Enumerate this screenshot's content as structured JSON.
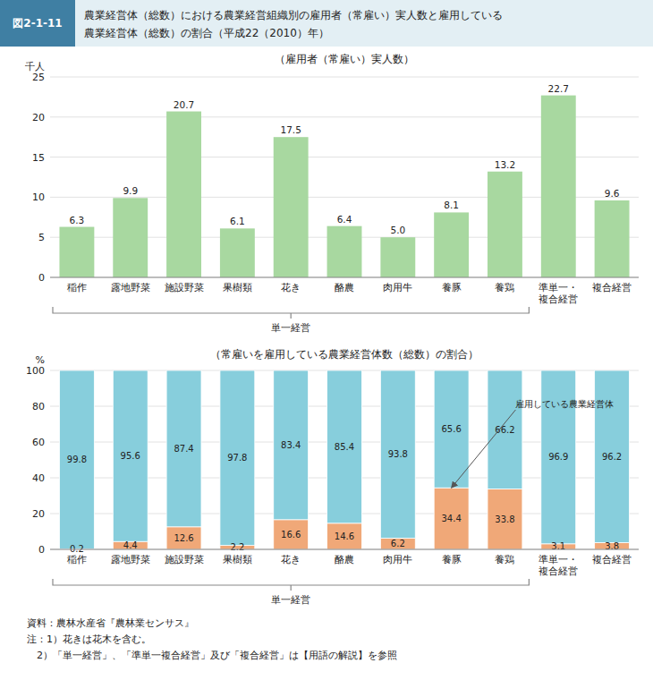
{
  "figure_label": "図2-1-11",
  "title": "農業経営体（総数）における農業経営組織別の雇用者（常雇い）実人数と雇用している",
  "subtitle": "農業経営体（総数）の割合（平成22（2010）年）",
  "source": "資料：農林水産省『農林業センサス』",
  "notes": [
    "注：1）花きは花木を含む。",
    "　2）「単一経営」、「準単一複合経営」及び「複合経営」は【用語の解説】を参照"
  ],
  "chart_data": [
    {
      "type": "bar",
      "title": "（雇用者（常雇い）実人数）",
      "y_label": "千人",
      "categories": [
        "稲作",
        "露地野菜",
        "施設野菜",
        "果樹類",
        "花き",
        "酪農",
        "肉用牛",
        "養豚",
        "養鶏",
        "準単一・複合経営",
        "複合経営"
      ],
      "values": [
        6.3,
        9.9,
        20.7,
        6.1,
        17.5,
        6.4,
        5.0,
        8.1,
        13.2,
        22.7,
        9.6
      ],
      "value_labels": [
        "6.3",
        "9.9",
        "20.7",
        "6.1",
        "17.5",
        "6.4",
        "5.0",
        "8.1",
        "13.2",
        "22.7",
        "9.6"
      ],
      "color": "#a8d8a0",
      "ylim": [
        0,
        25
      ],
      "yticks": [
        0,
        5,
        10,
        15,
        20,
        25
      ],
      "grid": true,
      "data_labels": true,
      "annotations": [
        {
          "text": "単一経営",
          "from": "稲作",
          "to": "養鶏"
        }
      ]
    },
    {
      "type": "bar",
      "title": "（常雇いを雇用している農業経営体数（総数）の割合）",
      "y_label": "%",
      "categories": [
        "稲作",
        "露地野菜",
        "施設野菜",
        "果樹類",
        "花き",
        "酪農",
        "肉用牛",
        "養豚",
        "養鶏",
        "準単一・複合経営",
        "複合経営"
      ],
      "series": [
        {
          "color": "#f0a878",
          "values": [
            0.2,
            4.4,
            12.6,
            2.2,
            16.6,
            14.6,
            6.2,
            34.4,
            33.8,
            3.1,
            3.8
          ]
        },
        {
          "color": "#87cedc",
          "values": [
            99.8,
            95.6,
            87.4,
            97.8,
            83.4,
            85.4,
            93.8,
            65.6,
            66.2,
            96.9,
            96.2
          ]
        }
      ],
      "stacked": true,
      "ylim": [
        0,
        100
      ],
      "yticks": [
        0,
        20,
        40,
        60,
        80,
        100
      ],
      "grid": true,
      "data_labels": true,
      "annotations": [
        {
          "text": "雇用している農業経営体",
          "category": "養豚",
          "y": 34.4
        },
        {
          "text": "単一経営",
          "from": "稲作",
          "to": "養鶏"
        }
      ]
    }
  ]
}
